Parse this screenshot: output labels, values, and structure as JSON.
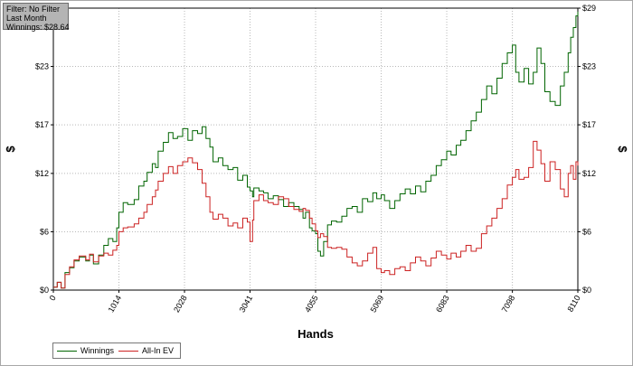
{
  "info": {
    "line1": "Filter: No Filter",
    "line2": "Last Month",
    "line3": "Winnings: $28.64"
  },
  "chart_data": {
    "type": "line",
    "xlabel": "Hands",
    "ylabel": "$",
    "xlim": [
      0,
      8110
    ],
    "ylim": [
      0,
      29
    ],
    "x_ticks": [
      0,
      1014,
      2028,
      3041,
      4055,
      5069,
      6083,
      7098,
      8110
    ],
    "y_ticks": [
      0,
      6,
      12,
      17,
      23,
      29
    ],
    "y_tick_labels": [
      "$0",
      "$6",
      "$12",
      "$17",
      "$23",
      "$29"
    ],
    "grid": true,
    "legend_position": "bottom-left",
    "series": [
      {
        "name": "Winnings",
        "color": "#006400",
        "points": [
          [
            0,
            0.3
          ],
          [
            60,
            0.8
          ],
          [
            120,
            0.2
          ],
          [
            180,
            1.8
          ],
          [
            250,
            2.3
          ],
          [
            320,
            3.0
          ],
          [
            400,
            3.4
          ],
          [
            500,
            3.0
          ],
          [
            560,
            3.6
          ],
          [
            620,
            2.7
          ],
          [
            700,
            3.6
          ],
          [
            780,
            4.6
          ],
          [
            850,
            5.3
          ],
          [
            920,
            5.0
          ],
          [
            980,
            6.4
          ],
          [
            1014,
            8.0
          ],
          [
            1080,
            9.0
          ],
          [
            1150,
            8.8
          ],
          [
            1250,
            9.3
          ],
          [
            1320,
            10.7
          ],
          [
            1400,
            11.2
          ],
          [
            1450,
            12.1
          ],
          [
            1530,
            13.0
          ],
          [
            1580,
            12.6
          ],
          [
            1620,
            14.3
          ],
          [
            1700,
            15.2
          ],
          [
            1780,
            16.2
          ],
          [
            1850,
            15.6
          ],
          [
            1920,
            15.8
          ],
          [
            2000,
            16.6
          ],
          [
            2080,
            15.4
          ],
          [
            2150,
            16.4
          ],
          [
            2230,
            16.1
          ],
          [
            2300,
            16.8
          ],
          [
            2360,
            15.6
          ],
          [
            2420,
            14.7
          ],
          [
            2470,
            13.2
          ],
          [
            2550,
            13.6
          ],
          [
            2620,
            12.8
          ],
          [
            2700,
            12.4
          ],
          [
            2780,
            12.6
          ],
          [
            2850,
            11.3
          ],
          [
            2930,
            11.8
          ],
          [
            3000,
            10.6
          ],
          [
            3041,
            10.2
          ],
          [
            3080,
            9.6
          ],
          [
            3100,
            10.5
          ],
          [
            3180,
            10.2
          ],
          [
            3250,
            10.0
          ],
          [
            3320,
            9.4
          ],
          [
            3400,
            9.7
          ],
          [
            3480,
            9.3
          ],
          [
            3560,
            8.6
          ],
          [
            3640,
            9.0
          ],
          [
            3720,
            8.6
          ],
          [
            3800,
            8.3
          ],
          [
            3860,
            7.4
          ],
          [
            3900,
            8.0
          ],
          [
            3960,
            6.4
          ],
          [
            4000,
            6.1
          ],
          [
            4055,
            5.8
          ],
          [
            4090,
            4.0
          ],
          [
            4130,
            3.5
          ],
          [
            4180,
            5.0
          ],
          [
            4240,
            6.7
          ],
          [
            4300,
            7.1
          ],
          [
            4380,
            7.0
          ],
          [
            4460,
            7.6
          ],
          [
            4540,
            8.4
          ],
          [
            4620,
            8.6
          ],
          [
            4700,
            8.0
          ],
          [
            4780,
            9.4
          ],
          [
            4860,
            9.1
          ],
          [
            4940,
            10.0
          ],
          [
            5000,
            9.4
          ],
          [
            5069,
            9.8
          ],
          [
            5120,
            9.2
          ],
          [
            5200,
            8.4
          ],
          [
            5280,
            9.2
          ],
          [
            5360,
            9.9
          ],
          [
            5440,
            10.4
          ],
          [
            5520,
            9.9
          ],
          [
            5600,
            10.7
          ],
          [
            5680,
            10.1
          ],
          [
            5760,
            11.2
          ],
          [
            5840,
            11.8
          ],
          [
            5920,
            12.8
          ],
          [
            6000,
            13.4
          ],
          [
            6083,
            14.3
          ],
          [
            6150,
            13.9
          ],
          [
            6230,
            14.9
          ],
          [
            6300,
            15.4
          ],
          [
            6380,
            16.4
          ],
          [
            6460,
            17.4
          ],
          [
            6540,
            18.3
          ],
          [
            6620,
            19.6
          ],
          [
            6700,
            21.0
          ],
          [
            6780,
            20.2
          ],
          [
            6860,
            21.8
          ],
          [
            6940,
            23.3
          ],
          [
            7020,
            24.4
          ],
          [
            7098,
            25.2
          ],
          [
            7150,
            22.4
          ],
          [
            7200,
            21.4
          ],
          [
            7280,
            22.8
          ],
          [
            7350,
            21.2
          ],
          [
            7420,
            22.4
          ],
          [
            7480,
            24.9
          ],
          [
            7540,
            23.3
          ],
          [
            7600,
            20.4
          ],
          [
            7680,
            19.4
          ],
          [
            7760,
            19.0
          ],
          [
            7840,
            21.0
          ],
          [
            7900,
            22.4
          ],
          [
            7960,
            24.4
          ],
          [
            8000,
            26.0
          ],
          [
            8040,
            27.0
          ],
          [
            8080,
            28.2
          ],
          [
            8110,
            28.64
          ]
        ]
      },
      {
        "name": "All-In EV",
        "color": "#cc2222",
        "points": [
          [
            0,
            0.3
          ],
          [
            60,
            0.8
          ],
          [
            120,
            0.2
          ],
          [
            180,
            1.6
          ],
          [
            250,
            2.4
          ],
          [
            320,
            3.1
          ],
          [
            400,
            3.5
          ],
          [
            500,
            3.1
          ],
          [
            560,
            3.7
          ],
          [
            620,
            2.9
          ],
          [
            700,
            3.5
          ],
          [
            780,
            3.8
          ],
          [
            850,
            3.6
          ],
          [
            920,
            4.1
          ],
          [
            980,
            4.6
          ],
          [
            1014,
            6.0
          ],
          [
            1080,
            6.4
          ],
          [
            1150,
            6.5
          ],
          [
            1250,
            6.8
          ],
          [
            1320,
            7.4
          ],
          [
            1400,
            8.0
          ],
          [
            1450,
            8.8
          ],
          [
            1530,
            9.6
          ],
          [
            1580,
            10.3
          ],
          [
            1620,
            11.2
          ],
          [
            1700,
            12.0
          ],
          [
            1780,
            12.7
          ],
          [
            1850,
            12.0
          ],
          [
            1920,
            12.8
          ],
          [
            2000,
            13.2
          ],
          [
            2080,
            13.6
          ],
          [
            2150,
            13.1
          ],
          [
            2230,
            12.4
          ],
          [
            2300,
            11.0
          ],
          [
            2360,
            9.6
          ],
          [
            2420,
            8.0
          ],
          [
            2470,
            7.3
          ],
          [
            2550,
            7.8
          ],
          [
            2620,
            7.4
          ],
          [
            2700,
            6.6
          ],
          [
            2780,
            6.9
          ],
          [
            2850,
            6.4
          ],
          [
            2930,
            7.4
          ],
          [
            3000,
            7.0
          ],
          [
            3041,
            5.0
          ],
          [
            3080,
            7.2
          ],
          [
            3100,
            9.2
          ],
          [
            3180,
            9.8
          ],
          [
            3250,
            9.2
          ],
          [
            3320,
            9.0
          ],
          [
            3400,
            8.8
          ],
          [
            3480,
            9.6
          ],
          [
            3560,
            9.4
          ],
          [
            3640,
            8.6
          ],
          [
            3720,
            8.3
          ],
          [
            3800,
            8.1
          ],
          [
            3860,
            8.4
          ],
          [
            3900,
            8.2
          ],
          [
            3960,
            7.4
          ],
          [
            4000,
            6.8
          ],
          [
            4055,
            6.1
          ],
          [
            4090,
            5.4
          ],
          [
            4130,
            5.8
          ],
          [
            4180,
            5.5
          ],
          [
            4240,
            4.4
          ],
          [
            4300,
            4.3
          ],
          [
            4380,
            4.4
          ],
          [
            4460,
            4.2
          ],
          [
            4540,
            3.4
          ],
          [
            4620,
            2.8
          ],
          [
            4700,
            2.5
          ],
          [
            4780,
            3.0
          ],
          [
            4860,
            3.8
          ],
          [
            4940,
            4.4
          ],
          [
            5000,
            2.2
          ],
          [
            5069,
            1.8
          ],
          [
            5120,
            2.0
          ],
          [
            5200,
            1.6
          ],
          [
            5280,
            2.2
          ],
          [
            5360,
            2.4
          ],
          [
            5440,
            2.0
          ],
          [
            5520,
            2.8
          ],
          [
            5600,
            3.4
          ],
          [
            5680,
            3.0
          ],
          [
            5760,
            2.5
          ],
          [
            5840,
            3.3
          ],
          [
            5920,
            4.0
          ],
          [
            6000,
            3.6
          ],
          [
            6083,
            3.2
          ],
          [
            6150,
            3.8
          ],
          [
            6230,
            3.4
          ],
          [
            6300,
            4.0
          ],
          [
            6380,
            4.6
          ],
          [
            6460,
            4.0
          ],
          [
            6540,
            4.3
          ],
          [
            6620,
            5.8
          ],
          [
            6700,
            6.6
          ],
          [
            6780,
            7.4
          ],
          [
            6860,
            8.4
          ],
          [
            6940,
            9.4
          ],
          [
            7020,
            10.8
          ],
          [
            7098,
            11.6
          ],
          [
            7150,
            12.4
          ],
          [
            7200,
            11.4
          ],
          [
            7280,
            11.6
          ],
          [
            7350,
            12.6
          ],
          [
            7420,
            15.3
          ],
          [
            7480,
            14.4
          ],
          [
            7540,
            13.0
          ],
          [
            7600,
            11.2
          ],
          [
            7680,
            13.2
          ],
          [
            7760,
            12.4
          ],
          [
            7840,
            10.4
          ],
          [
            7900,
            9.6
          ],
          [
            7960,
            12.0
          ],
          [
            8000,
            12.8
          ],
          [
            8040,
            11.4
          ],
          [
            8080,
            13.2
          ],
          [
            8110,
            12.8
          ]
        ]
      }
    ]
  }
}
